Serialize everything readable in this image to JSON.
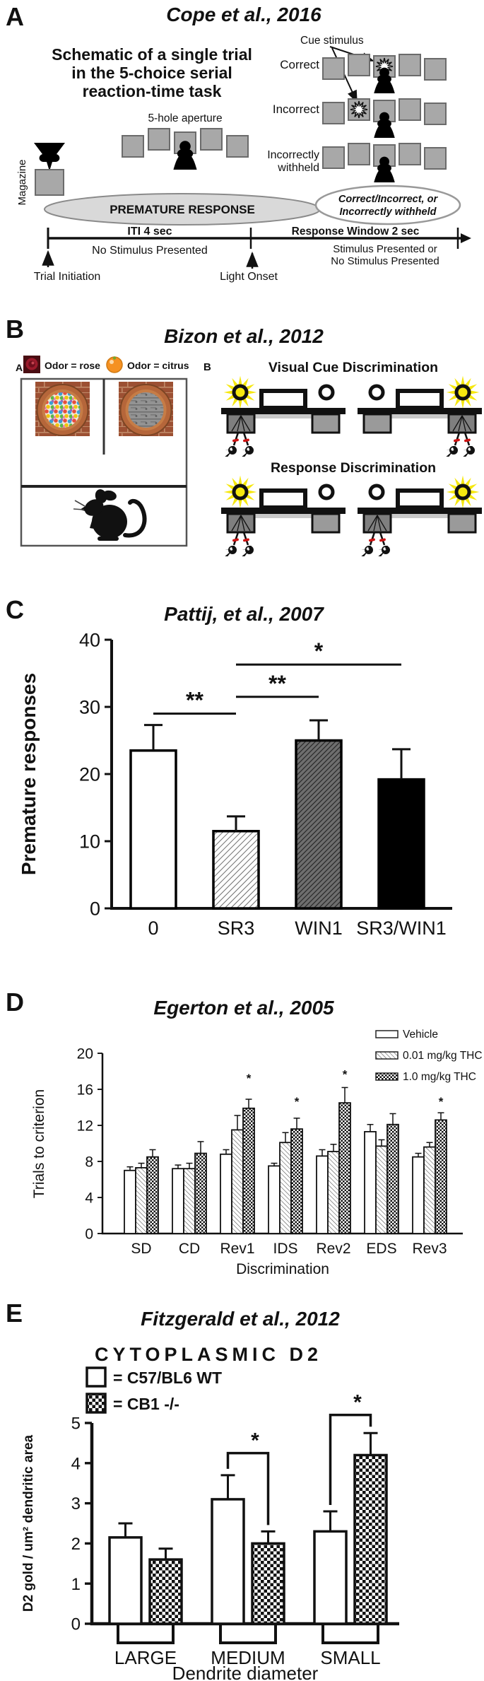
{
  "figure": {
    "panel_a": {
      "letter": "A",
      "title": "Cope et al., 2016",
      "schematic_title": [
        "Schematic of a single trial",
        "in the 5-choice serial",
        "reaction-time task"
      ],
      "five_hole": "5-hole aperture",
      "magazine": "Magazine",
      "premature": "PREMATURE RESPONSE",
      "cue_stimulus": "Cue stimulus",
      "correct": "Correct",
      "incorrect": "Incorrect",
      "incorrectly_withheld": [
        "Incorrectly",
        "withheld"
      ],
      "outcome": [
        "Correct/Incorrect, or",
        "Incorrectly withheld"
      ],
      "iti": "ITI 4 sec",
      "response_window": "Response Window 2 sec",
      "no_stimulus": "No Stimulus Presented",
      "stimulus_or": [
        "Stimulus Presented or",
        "No Stimulus Presented"
      ],
      "trial_initiation": "Trial Initiation",
      "light_onset": "Light Onset"
    },
    "panel_b": {
      "letter": "B",
      "title": "Bizon et al., 2012",
      "sub_a_label": "A",
      "sub_b_label": "B",
      "odor_rose": "Odor = rose",
      "odor_citrus": "Odor = citrus",
      "visual_title": "Visual Cue Discrimination",
      "response_title": "Response Discrimination"
    },
    "panel_c": {
      "letter": "C",
      "title": "Pattij, et al., 2007"
    },
    "panel_d": {
      "letter": "D",
      "title": "Egerton et al., 2005"
    },
    "panel_e": {
      "letter": "E",
      "title": "Fitzgerald et al., 2012",
      "chart_title": "CYTOPLASMIC D2"
    }
  },
  "chart_data": [
    {
      "panel": "C",
      "type": "bar",
      "title": "Pattij, et al., 2007",
      "ylabel": "Premature responses",
      "ylim": [
        0,
        40
      ],
      "yticks": [
        0,
        10,
        20,
        30,
        40
      ],
      "categories": [
        "0",
        "SR3",
        "WIN1",
        "SR3/WIN1"
      ],
      "values": [
        23.5,
        11.5,
        25,
        19.2
      ],
      "errors_upper": [
        3.8,
        2.2,
        3,
        4.5
      ],
      "bar_styles": [
        "white",
        "light-hatch",
        "dark-hatch",
        "black"
      ],
      "significance": [
        {
          "a": 0,
          "b": 1,
          "label": "**",
          "y": 29
        },
        {
          "a": 1,
          "b": 2,
          "label": "**",
          "y": 31.5
        },
        {
          "a": 1,
          "b": 3,
          "label": "*",
          "y": 36.3
        }
      ]
    },
    {
      "panel": "D",
      "type": "grouped-bar",
      "title": "Egerton et al., 2005",
      "xlabel": "Discrimination",
      "ylabel": "Trials to criterion",
      "ylim": [
        0,
        20
      ],
      "yticks": [
        0,
        4,
        8,
        12,
        16,
        20
      ],
      "categories": [
        "SD",
        "CD",
        "Rev1",
        "IDS",
        "Rev2",
        "EDS",
        "Rev3"
      ],
      "series": [
        {
          "name": "Vehicle",
          "style": "white",
          "values": [
            7.0,
            7.2,
            8.8,
            7.5,
            8.6,
            11.3,
            8.5
          ],
          "errors": [
            0.4,
            0.4,
            0.5,
            0.3,
            0.7,
            0.8,
            0.4
          ]
        },
        {
          "name": "0.01 mg/kg THC",
          "style": "hatch",
          "values": [
            7.3,
            7.2,
            11.5,
            10.1,
            9.1,
            9.7,
            9.6
          ],
          "errors": [
            0.5,
            0.6,
            1.6,
            1.1,
            0.8,
            0.7,
            0.5
          ]
        },
        {
          "name": "1.0 mg/kg THC",
          "style": "checker",
          "values": [
            8.5,
            8.9,
            13.9,
            11.6,
            14.5,
            12.1,
            12.6
          ],
          "errors": [
            0.8,
            1.3,
            1.0,
            1.2,
            1.7,
            1.2,
            0.8
          ]
        }
      ],
      "asterisks": [
        {
          "cat": 2,
          "y": 16.8
        },
        {
          "cat": 3,
          "y": 14.2
        },
        {
          "cat": 4,
          "y": 17.2
        },
        {
          "cat": 6,
          "y": 14.2
        }
      ]
    },
    {
      "panel": "E",
      "type": "grouped-bar",
      "title": "CYTOPLASMIC D2",
      "xlabel": "Dendrite diameter",
      "ylabel": "D2 gold / um² dendritic area",
      "ylim": [
        0,
        5
      ],
      "yticks": [
        0,
        1,
        2,
        3,
        4,
        5
      ],
      "categories": [
        "LARGE",
        "MEDIUM",
        "SMALL"
      ],
      "series": [
        {
          "name": "= C57/BL6 WT",
          "style": "white",
          "values": [
            2.15,
            3.1,
            2.3
          ],
          "errors": [
            0.35,
            0.6,
            0.5
          ]
        },
        {
          "name": "= CB1 -/-",
          "style": "checker",
          "values": [
            1.6,
            2.0,
            4.2
          ],
          "errors": [
            0.27,
            0.3,
            0.55
          ]
        }
      ],
      "significance": [
        {
          "cat": 1,
          "label": "*",
          "y": 4.25
        },
        {
          "cat": 2,
          "label": "*",
          "y": 5.2
        }
      ]
    }
  ],
  "colors": {
    "starburst_yellow": "#f6e80f",
    "red_marker": "#cc1111",
    "gray_square": "#a8a8a8",
    "light_gray_ellipse": "#d9d9d9",
    "dark_title": "#14143c"
  }
}
